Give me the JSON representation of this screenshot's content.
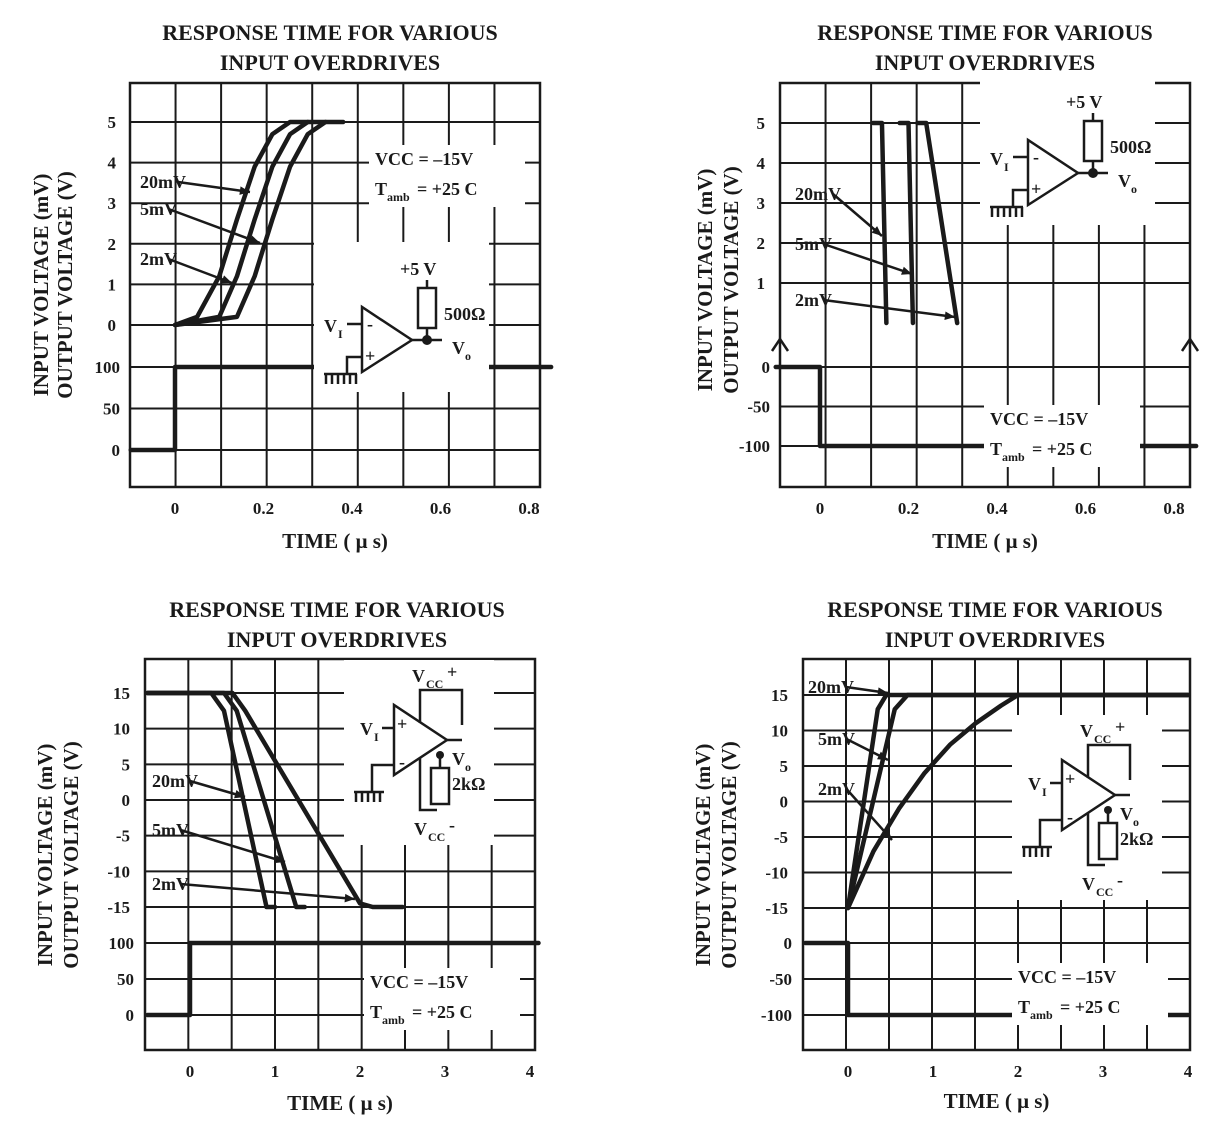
{
  "chart_data": [
    {
      "type": "line",
      "title_lines": [
        "RESPONSE TIME FOR VARIOUS",
        "INPUT OVERDRIVES"
      ],
      "xlabel": "TIME ( μ s)",
      "ylabel_lines": [
        "INPUT VOLTAGE (mV)",
        "OUTPUT VOLTAGE (V)"
      ],
      "x_ticks": [
        "0",
        "0.2",
        "0.4",
        "0.6",
        "0.8"
      ],
      "xlim": [
        -0.1,
        0.85
      ],
      "output_ticks": [
        "5",
        "4",
        "3",
        "2",
        "1",
        "0"
      ],
      "input_ticks": [
        "100",
        "50",
        "0"
      ],
      "output_ylim": [
        0,
        5
      ],
      "input_ylim": [
        0,
        100
      ],
      "series": [
        {
          "name": "20mV",
          "x": [
            0.0,
            0.05,
            0.1,
            0.14,
            0.18,
            0.22,
            0.26,
            0.3
          ],
          "y": [
            0,
            0.2,
            1.2,
            2.6,
            3.9,
            4.7,
            5.0,
            5.0
          ]
        },
        {
          "name": "5mV",
          "x": [
            0.0,
            0.1,
            0.14,
            0.18,
            0.22,
            0.26,
            0.3,
            0.34
          ],
          "y": [
            0,
            0.2,
            1.2,
            2.6,
            3.9,
            4.7,
            5.0,
            5.0
          ]
        },
        {
          "name": "2mV",
          "x": [
            0.0,
            0.14,
            0.18,
            0.22,
            0.26,
            0.3,
            0.34,
            0.38
          ],
          "y": [
            0,
            0.2,
            1.2,
            2.6,
            3.9,
            4.7,
            5.0,
            5.0
          ]
        }
      ],
      "input_step": {
        "x": [
          -0.1,
          0.0,
          0.0,
          0.85
        ],
        "y": [
          0,
          0,
          100,
          100
        ]
      },
      "conditions": [
        "VCC = –15V",
        "T",
        "amb",
        " = +25 C"
      ],
      "circuit": {
        "supply": "+5 V",
        "resistor": "500Ω",
        "input": "V",
        "input_sub": "I",
        "output": "V",
        "output_sub": "o",
        "minus": "-",
        "plus": "+"
      }
    },
    {
      "type": "line",
      "title_lines": [
        "RESPONSE TIME FOR VARIOUS",
        "INPUT OVERDRIVES"
      ],
      "xlabel": "TIME ( μ s)",
      "ylabel_lines": [
        "INPUT VOLTAGE (mV)",
        "OUTPUT VOLTAGE (V)"
      ],
      "x_ticks": [
        "0",
        "0.2",
        "0.4",
        "0.6",
        "0.8"
      ],
      "xlim": [
        -0.1,
        0.85
      ],
      "output_ticks": [
        "5",
        "4",
        "3",
        "2",
        "1"
      ],
      "input_ticks": [
        "0",
        "-50",
        "-100"
      ],
      "output_ylim": [
        0,
        5
      ],
      "input_ylim": [
        -100,
        0
      ],
      "series": [
        {
          "name": "20mV",
          "x": [
            0.12,
            0.14,
            0.15
          ],
          "y": [
            5.0,
            5.0,
            0
          ]
        },
        {
          "name": "5mV",
          "x": [
            0.18,
            0.2,
            0.21
          ],
          "y": [
            5.0,
            5.0,
            0
          ]
        },
        {
          "name": "2mV",
          "x": [
            0.22,
            0.24,
            0.31
          ],
          "y": [
            5.0,
            5.0,
            0
          ]
        }
      ],
      "input_step": {
        "x": [
          -0.1,
          0.0,
          0.0,
          0.85
        ],
        "y": [
          0,
          0,
          -100,
          -100
        ]
      },
      "conditions": [
        "VCC = –15V",
        "T",
        "amb",
        " = +25 C"
      ],
      "circuit": {
        "supply": "+5 V",
        "resistor": "500Ω",
        "input": "V",
        "input_sub": "I",
        "output": "V",
        "output_sub": "o",
        "minus": "-",
        "plus": "+"
      }
    },
    {
      "type": "line",
      "title_lines": [
        "RESPONSE TIME FOR VARIOUS",
        "INPUT OVERDRIVES"
      ],
      "xlabel": "TIME ( μ s)",
      "ylabel_lines": [
        "INPUT VOLTAGE (mV)",
        "OUTPUT VOLTAGE (V)"
      ],
      "x_ticks": [
        "0",
        "1",
        "2",
        "3",
        "4"
      ],
      "xlim": [
        -0.5,
        4.1
      ],
      "output_ticks": [
        "15",
        "10",
        "5",
        "0",
        "-5",
        "-10",
        "-15"
      ],
      "input_ticks": [
        "100",
        "50",
        "0"
      ],
      "output_ylim": [
        -15,
        15
      ],
      "input_ylim": [
        0,
        100
      ],
      "series": [
        {
          "name": "20mV",
          "x": [
            -0.5,
            0.25,
            0.4,
            0.9,
            1.0
          ],
          "y": [
            15,
            15,
            12.5,
            -15,
            -15
          ]
        },
        {
          "name": "5mV",
          "x": [
            -0.5,
            0.4,
            0.55,
            1.25,
            1.35
          ],
          "y": [
            15,
            15,
            12.5,
            -15,
            -15
          ]
        },
        {
          "name": "2mV",
          "x": [
            -0.5,
            0.5,
            0.65,
            2.0,
            2.15,
            2.5
          ],
          "y": [
            15,
            15,
            12.5,
            -14.5,
            -15,
            -15
          ]
        }
      ],
      "input_step": {
        "x": [
          -0.5,
          0.0,
          0.0,
          4.1
        ],
        "y": [
          0,
          0,
          100,
          100
        ]
      },
      "conditions": [
        "VCC = –15V",
        "T",
        "amb",
        " = +25 C"
      ],
      "circuit": {
        "supply": "V",
        "supply_sub": "CC",
        "supply_sign": "+",
        "neg_supply": "V",
        "neg_supply_sub": "CC",
        "neg_supply_sign": "-",
        "resistor": "2kΩ",
        "input": "V",
        "input_sub": "I",
        "output": "V",
        "output_sub": "o",
        "minus": "-",
        "plus": "+"
      }
    },
    {
      "type": "line",
      "title_lines": [
        "RESPONSE TIME FOR VARIOUS",
        "INPUT OVERDRIVES"
      ],
      "xlabel": "TIME ( μ s)",
      "ylabel_lines": [
        "INPUT VOLTAGE (mV)",
        "OUTPUT VOLTAGE (V)"
      ],
      "x_ticks": [
        "0",
        "1",
        "2",
        "3",
        "4"
      ],
      "xlim": [
        -0.5,
        4.0
      ],
      "output_ticks": [
        "15",
        "10",
        "5",
        "0",
        "-5",
        "-10",
        "-15"
      ],
      "input_ticks": [
        "0",
        "-50",
        "-100"
      ],
      "output_ylim": [
        -15,
        15
      ],
      "input_ylim": [
        -100,
        0
      ],
      "series": [
        {
          "name": "20mV",
          "x": [
            0.0,
            0.35,
            0.45,
            4.0
          ],
          "y": [
            -15,
            13,
            15,
            15
          ]
        },
        {
          "name": "5mV",
          "x": [
            0.0,
            0.55,
            0.7,
            4.0
          ],
          "y": [
            -15,
            13,
            15,
            15
          ]
        },
        {
          "name": "2mV",
          "x": [
            0.0,
            0.3,
            0.6,
            0.9,
            1.2,
            1.5,
            1.8,
            2.0,
            4.0
          ],
          "y": [
            -15,
            -7,
            -1,
            4,
            8,
            11,
            13.5,
            15,
            15
          ]
        }
      ],
      "input_step": {
        "x": [
          -0.5,
          0.0,
          0.0,
          4.0
        ],
        "y": [
          0,
          0,
          -100,
          -100
        ]
      },
      "conditions": [
        "VCC = –15V",
        "T",
        "amb",
        " = +25 C"
      ],
      "circuit": {
        "supply": "V",
        "supply_sub": "CC",
        "supply_sign": "+",
        "neg_supply": "V",
        "neg_supply_sub": "CC",
        "neg_supply_sign": "-",
        "resistor": "2kΩ",
        "input": "V",
        "input_sub": "I",
        "output": "V",
        "output_sub": "o",
        "minus": "-",
        "plus": "+"
      }
    }
  ]
}
